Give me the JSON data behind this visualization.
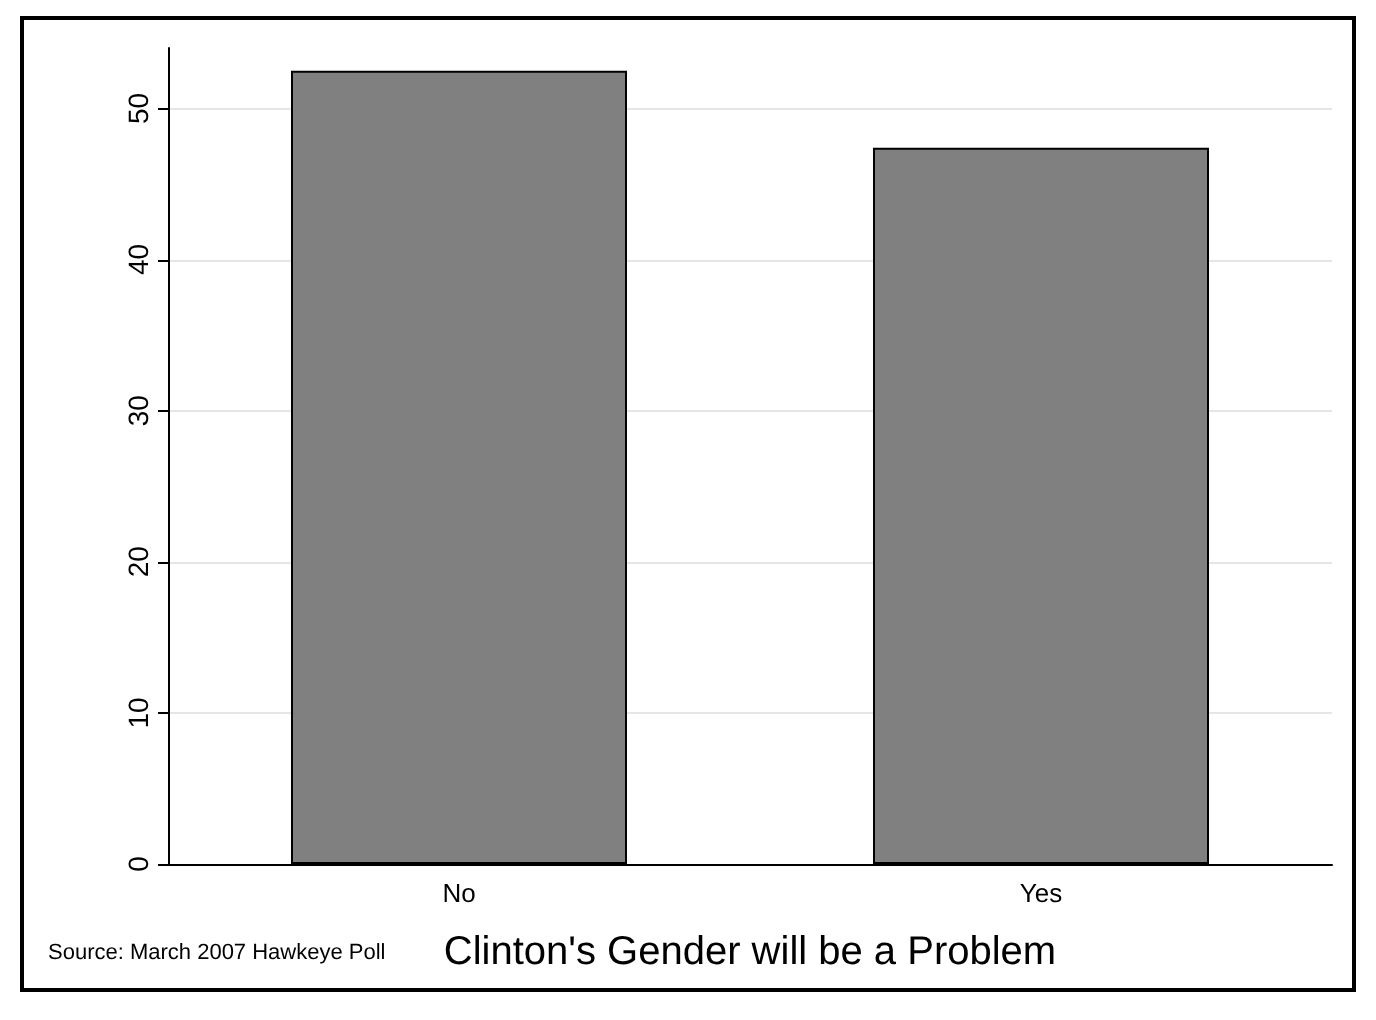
{
  "chart_data": {
    "type": "bar",
    "xlabel": "Clinton's Gender will be a Problem",
    "categories": [
      "No",
      "Yes"
    ],
    "values": [
      52.5,
      47.4
    ],
    "color": "#808080",
    "ylim": [
      0,
      54
    ],
    "yticks": [
      0,
      10,
      20,
      30,
      40,
      50
    ],
    "grid": "y",
    "annotations": [
      "Source: March 2007 Hawkeye Poll"
    ]
  }
}
